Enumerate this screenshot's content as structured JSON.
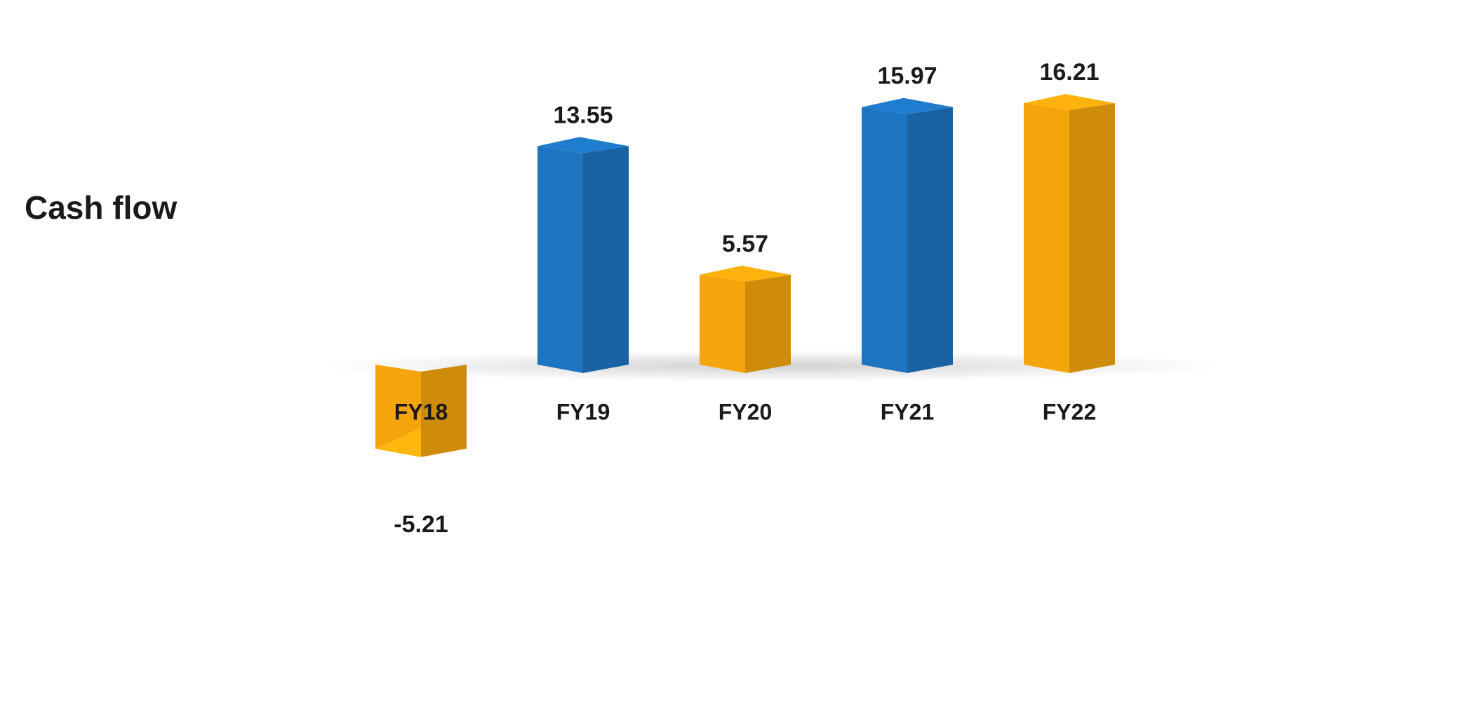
{
  "chart_data": {
    "type": "bar3d",
    "title": "Cash flow",
    "categories": [
      "FY18",
      "FY19",
      "FY20",
      "FY21",
      "FY22"
    ],
    "values": [
      -5.21,
      13.55,
      5.57,
      15.97,
      16.21
    ],
    "colors": [
      "#f4a50c",
      "#1d74c0",
      "#f4a50c",
      "#1d74c0",
      "#f4a50c"
    ]
  }
}
